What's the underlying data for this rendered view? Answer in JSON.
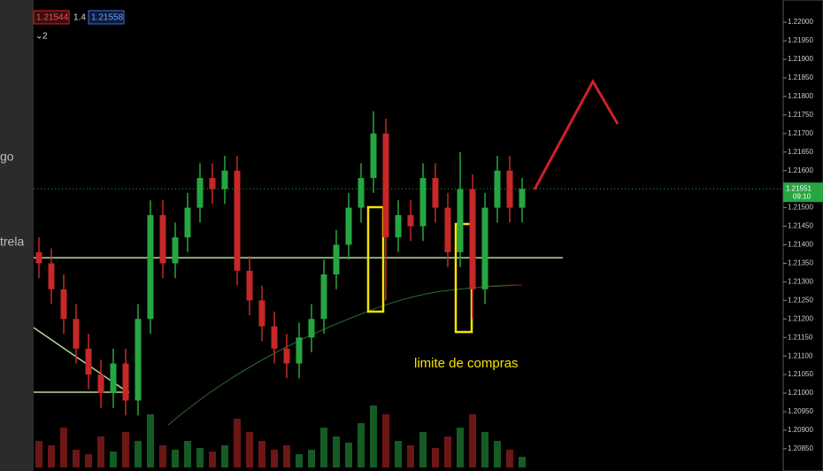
{
  "sidebar": [
    "go",
    "trela"
  ],
  "header": {
    "bid": "1.21544",
    "spread": "1.4",
    "ask": "1.21558",
    "count": "2"
  },
  "chart_data": {
    "type": "candlestick",
    "open": [
      1.2138,
      1.2135,
      1.2128,
      1.212,
      1.2112,
      1.2105,
      1.21,
      1.2108,
      1.2098,
      1.212,
      1.2148,
      1.2135,
      1.2142,
      1.215,
      1.2158,
      1.2155,
      1.216,
      1.2133,
      1.2125,
      1.2118,
      1.2112,
      1.2108,
      1.2115,
      1.212,
      1.2132,
      1.214,
      1.215,
      1.2158,
      1.217,
      1.2142,
      1.2148,
      1.2145,
      1.2158,
      1.215,
      1.2138,
      1.2155,
      1.2128,
      1.215,
      1.216,
      1.215
    ],
    "high": [
      1.2142,
      1.2139,
      1.2132,
      1.2124,
      1.2116,
      1.2109,
      1.2112,
      1.2112,
      1.2124,
      1.2152,
      1.2152,
      1.2146,
      1.2154,
      1.2162,
      1.2162,
      1.2164,
      1.2164,
      1.2137,
      1.2129,
      1.2122,
      1.2116,
      1.2119,
      1.2124,
      1.2136,
      1.2144,
      1.2154,
      1.2162,
      1.2176,
      1.2174,
      1.2152,
      1.2152,
      1.2162,
      1.2162,
      1.2154,
      1.2165,
      1.2159,
      1.2154,
      1.2164,
      1.2164,
      1.2158
    ],
    "low": [
      1.2131,
      1.2124,
      1.2116,
      1.2108,
      1.2101,
      1.2096,
      1.2096,
      1.2094,
      1.2094,
      1.2116,
      1.2131,
      1.2131,
      1.2138,
      1.2146,
      1.2151,
      1.2151,
      1.2129,
      1.2121,
      1.2114,
      1.2108,
      1.2104,
      1.2104,
      1.2111,
      1.2116,
      1.2128,
      1.2136,
      1.2146,
      1.2154,
      1.2125,
      1.2138,
      1.2141,
      1.2141,
      1.2146,
      1.2134,
      1.2134,
      1.212,
      1.2124,
      1.2146,
      1.2146,
      1.2146
    ],
    "close": [
      1.2135,
      1.2128,
      1.212,
      1.2112,
      1.2105,
      1.21,
      1.2108,
      1.2098,
      1.212,
      1.2148,
      1.2135,
      1.2142,
      1.215,
      1.2158,
      1.2155,
      1.216,
      1.2133,
      1.2125,
      1.2118,
      1.2112,
      1.2108,
      1.2115,
      1.212,
      1.2132,
      1.214,
      1.215,
      1.2158,
      1.217,
      1.2142,
      1.2148,
      1.2145,
      1.2158,
      1.215,
      1.2138,
      1.2155,
      1.2128,
      1.215,
      1.216,
      1.215,
      1.21551
    ],
    "volume": [
      30,
      25,
      45,
      20,
      15,
      35,
      18,
      40,
      30,
      60,
      25,
      20,
      30,
      22,
      18,
      25,
      55,
      40,
      30,
      20,
      25,
      15,
      20,
      45,
      35,
      28,
      50,
      70,
      60,
      30,
      25,
      40,
      22,
      35,
      45,
      60,
      40,
      30,
      20,
      12
    ],
    "up_color": "#26a641",
    "down_color": "#c62828",
    "ylim": [
      1.2079,
      1.2206
    ],
    "yticks": [
      {
        "value": 1.22,
        "label": "1.22000"
      },
      {
        "value": 1.2195,
        "label": "1.21950"
      },
      {
        "value": 1.219,
        "label": "1.21900"
      },
      {
        "value": 1.2185,
        "label": "1.21850"
      },
      {
        "value": 1.218,
        "label": "1.21800"
      },
      {
        "value": 1.2175,
        "label": "1.21750"
      },
      {
        "value": 1.217,
        "label": "1.21700"
      },
      {
        "value": 1.2165,
        "label": "1.21650"
      },
      {
        "value": 1.216,
        "label": "1.21600"
      },
      {
        "value": 1.2155,
        "label": "1.21550"
      },
      {
        "value": 1.215,
        "label": "1.21500"
      },
      {
        "value": 1.2145,
        "label": "1.21450"
      },
      {
        "value": 1.214,
        "label": "1.21400"
      },
      {
        "value": 1.2135,
        "label": "1.21350"
      },
      {
        "value": 1.213,
        "label": "1.21300"
      },
      {
        "value": 1.2125,
        "label": "1.21250"
      },
      {
        "value": 1.212,
        "label": "1.21200"
      },
      {
        "value": 1.2115,
        "label": "1.21150"
      },
      {
        "value": 1.211,
        "label": "1.21100"
      },
      {
        "value": 1.2105,
        "label": "1.21050"
      },
      {
        "value": 1.21,
        "label": "1.21000"
      },
      {
        "value": 1.2095,
        "label": "1.20950"
      },
      {
        "value": 1.209,
        "label": "1.20900"
      },
      {
        "value": 1.2085,
        "label": "1.20850"
      }
    ],
    "last_price": 1.21551,
    "last_time": "09:10",
    "level": 1.21365,
    "annotation": "limite de compras"
  }
}
